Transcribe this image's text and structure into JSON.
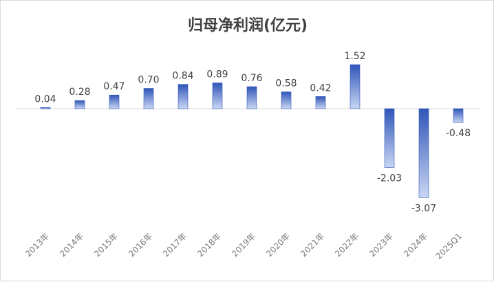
{
  "chart_data": {
    "type": "bar",
    "title": "归母净利润(亿元)",
    "categories": [
      "2013年",
      "2014年",
      "2015年",
      "2016年",
      "2017年",
      "2018年",
      "2019年",
      "2020年",
      "2021年",
      "2022年",
      "2023年",
      "2024年",
      "2025Q1"
    ],
    "values": [
      0.04,
      0.28,
      0.47,
      0.7,
      0.84,
      0.89,
      0.76,
      0.58,
      0.42,
      1.52,
      -2.03,
      -3.07,
      -0.48
    ],
    "value_labels": [
      "0.04",
      "0.28",
      "0.47",
      "0.70",
      "0.84",
      "0.89",
      "0.76",
      "0.58",
      "0.42",
      "1.52",
      "-2.03",
      "-3.07",
      "-0.48"
    ],
    "xlabel": "",
    "ylabel": "",
    "ylim": [
      -3.07,
      1.52
    ],
    "grid": false,
    "legend": "none",
    "colors": {
      "bar_top": "#2f55b8",
      "bar_bottom": "#c9d6f3",
      "zero_line": "#d9d9d9",
      "text": "#404040"
    }
  }
}
